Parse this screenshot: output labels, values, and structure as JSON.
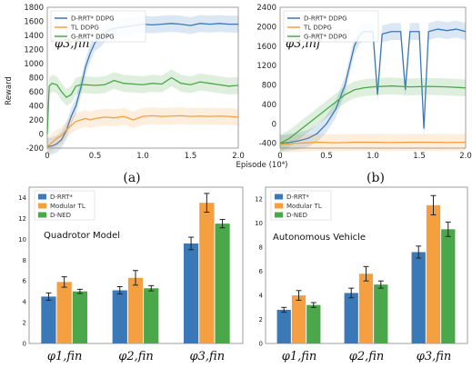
{
  "colors": {
    "blue": "#3a78b8",
    "orange": "#f5a040",
    "green": "#4aa84a",
    "gray": "#222222"
  },
  "chart_data": [
    {
      "type": "line",
      "panel_label": "(a)",
      "annotation": "φ3,fin",
      "ylabel": "Reward",
      "xlabel": "",
      "xlim": [
        0,
        2.0
      ],
      "ylim": [
        -200,
        1800
      ],
      "xticks": [
        "0",
        "0.5",
        "1.0",
        "1.5",
        "2.0"
      ],
      "yticks": [
        "-200",
        "0",
        "200",
        "400",
        "600",
        "800",
        "1000",
        "1200",
        "1400",
        "1600",
        "1800"
      ],
      "legend": [
        "D-RRT* DDPG",
        "TL DDPG",
        "G-RRT* DDPG"
      ],
      "series": [
        {
          "name": "D-RRT* DDPG",
          "x": [
            0,
            0.05,
            0.1,
            0.15,
            0.2,
            0.25,
            0.3,
            0.35,
            0.4,
            0.45,
            0.5,
            0.55,
            0.6,
            0.65,
            0.7,
            0.8,
            0.9,
            1.0,
            1.1,
            1.2,
            1.3,
            1.4,
            1.5,
            1.6,
            1.7,
            1.8,
            1.9,
            2.0
          ],
          "y": [
            -180,
            -170,
            -140,
            -80,
            50,
            250,
            400,
            650,
            950,
            1150,
            1300,
            1350,
            1420,
            1480,
            1500,
            1520,
            1540,
            1560,
            1550,
            1560,
            1570,
            1560,
            1540,
            1570,
            1560,
            1570,
            1560,
            1560
          ]
        },
        {
          "name": "TL DDPG",
          "x": [
            0,
            0.05,
            0.1,
            0.15,
            0.2,
            0.25,
            0.3,
            0.35,
            0.4,
            0.45,
            0.5,
            0.6,
            0.7,
            0.8,
            0.9,
            1.0,
            1.1,
            1.2,
            1.3,
            1.4,
            1.5,
            1.6,
            1.7,
            1.8,
            1.9,
            2.0
          ],
          "y": [
            -180,
            -120,
            -60,
            -20,
            60,
            120,
            180,
            200,
            220,
            200,
            220,
            240,
            230,
            250,
            200,
            250,
            260,
            250,
            255,
            260,
            250,
            255,
            250,
            255,
            250,
            240
          ]
        },
        {
          "name": "G-RRT* DDPG",
          "x": [
            0,
            0.02,
            0.05,
            0.1,
            0.15,
            0.2,
            0.25,
            0.3,
            0.35,
            0.4,
            0.5,
            0.6,
            0.7,
            0.8,
            0.9,
            1.0,
            1.1,
            1.2,
            1.3,
            1.4,
            1.5,
            1.6,
            1.7,
            1.8,
            1.9,
            2.0
          ],
          "y": [
            0,
            680,
            720,
            700,
            600,
            520,
            560,
            680,
            700,
            700,
            690,
            700,
            760,
            720,
            710,
            700,
            720,
            710,
            800,
            720,
            700,
            740,
            720,
            700,
            680,
            690
          ]
        }
      ]
    },
    {
      "type": "line",
      "panel_label": "(b)",
      "annotation": "φ3,inf",
      "ylabel": "",
      "xlabel": "Episode (10⁴)",
      "xlim": [
        0,
        2.0
      ],
      "ylim": [
        -500,
        2400
      ],
      "xticks": [
        "0",
        "0.5",
        "1.0",
        "1.5",
        "2.0"
      ],
      "yticks": [
        "-400",
        "0",
        "400",
        "800",
        "1200",
        "1600",
        "2000",
        "2400"
      ],
      "legend": [
        "D-RRT* DDPG",
        "TL DDPG",
        "G-RRT* DDPG"
      ],
      "series": [
        {
          "name": "D-RRT* DDPG",
          "x": [
            0,
            0.1,
            0.2,
            0.3,
            0.4,
            0.5,
            0.6,
            0.7,
            0.75,
            0.8,
            0.85,
            0.9,
            1.0,
            1.05,
            1.1,
            1.2,
            1.3,
            1.35,
            1.4,
            1.5,
            1.55,
            1.6,
            1.7,
            1.8,
            1.9,
            2.0
          ],
          "y": [
            -400,
            -380,
            -350,
            -300,
            -200,
            0,
            300,
            800,
            1200,
            1600,
            1800,
            1900,
            1900,
            600,
            1850,
            1900,
            1900,
            700,
            1900,
            1900,
            -100,
            1900,
            1950,
            1920,
            1950,
            1900
          ]
        },
        {
          "name": "TL DDPG",
          "x": [
            0,
            0.2,
            0.4,
            0.6,
            0.8,
            1.0,
            1.2,
            1.4,
            1.6,
            1.8,
            2.0
          ],
          "y": [
            -420,
            -400,
            -380,
            -390,
            -380,
            -380,
            -385,
            -380,
            -380,
            -385,
            -380
          ]
        },
        {
          "name": "G-RRT* DDPG",
          "x": [
            0,
            0.1,
            0.2,
            0.3,
            0.4,
            0.5,
            0.6,
            0.7,
            0.8,
            0.9,
            1.0,
            1.2,
            1.4,
            1.6,
            1.8,
            2.0
          ],
          "y": [
            -400,
            -300,
            -150,
            0,
            150,
            300,
            450,
            600,
            700,
            740,
            760,
            780,
            760,
            770,
            760,
            740
          ]
        }
      ]
    },
    {
      "type": "bar",
      "model_label": "Quadrotor Model",
      "categories": [
        "φ1,fin",
        "φ2,fin",
        "φ3,fin"
      ],
      "ylim": [
        0,
        15
      ],
      "yticks": [
        "0",
        "2",
        "4",
        "6",
        "8",
        "10",
        "12",
        "14"
      ],
      "legend": [
        "D-RRT*",
        "Modular TL",
        "D-NED"
      ],
      "series": [
        {
          "name": "D-RRT*",
          "values": [
            4.5,
            5.1,
            9.6
          ],
          "errors": [
            0.35,
            0.35,
            0.6
          ]
        },
        {
          "name": "Modular TL",
          "values": [
            5.9,
            6.3,
            13.5
          ],
          "errors": [
            0.5,
            0.7,
            0.9
          ]
        },
        {
          "name": "D-NED",
          "values": [
            5.0,
            5.3,
            11.5
          ],
          "errors": [
            0.2,
            0.25,
            0.4
          ]
        }
      ]
    },
    {
      "type": "bar",
      "model_label": "Autonomous Vehicle",
      "categories": [
        "φ1,fin",
        "φ2,fin",
        "φ3,fin"
      ],
      "ylim": [
        0,
        13
      ],
      "yticks": [
        "0",
        "2",
        "4",
        "6",
        "8",
        "10",
        "12"
      ],
      "legend": [
        "D-RRT*",
        "Modular TL",
        "D-NED"
      ],
      "series": [
        {
          "name": "D-RRT*",
          "values": [
            2.8,
            4.2,
            7.6
          ],
          "errors": [
            0.2,
            0.4,
            0.5
          ]
        },
        {
          "name": "Modular TL",
          "values": [
            4.0,
            5.8,
            11.5
          ],
          "errors": [
            0.4,
            0.6,
            0.8
          ]
        },
        {
          "name": "D-NED",
          "values": [
            3.2,
            4.9,
            9.5
          ],
          "errors": [
            0.2,
            0.3,
            0.6
          ]
        }
      ]
    }
  ]
}
